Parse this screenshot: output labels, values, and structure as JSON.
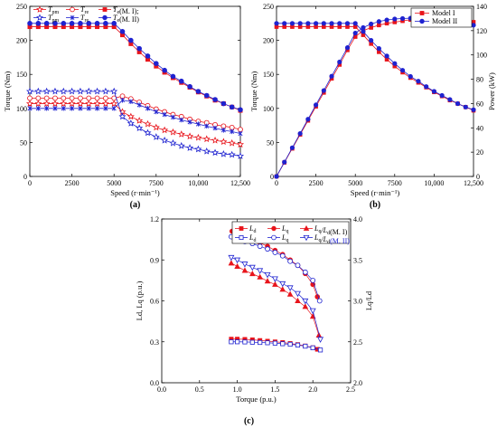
{
  "figure_labels": [
    "(a)",
    "(b)",
    "(c)"
  ],
  "colors": {
    "red": "#e8141b",
    "blue": "#1e22d0",
    "dark": "#222222"
  },
  "chart_data": [
    {
      "id": "a",
      "type": "line",
      "xlabel": "Speed (r·min⁻¹)",
      "ylabel": "Torque (Nm)",
      "xlim": [
        0,
        12500
      ],
      "ylim": [
        0,
        250
      ],
      "xticks": [
        0,
        2500,
        5000,
        7500,
        10000,
        12500
      ],
      "xtick_labels": [
        "0",
        "2500",
        "5000",
        "7500",
        "10,000",
        "12,500"
      ],
      "yticks": [
        0,
        50,
        100,
        150,
        200,
        250
      ],
      "ytick_labels": [
        "0",
        "50",
        "100",
        "150",
        "200",
        "250"
      ],
      "grid": false,
      "legend_position": "top",
      "x": [
        0,
        500,
        1000,
        1500,
        2000,
        2500,
        3000,
        3500,
        4000,
        4500,
        5000,
        5500,
        6000,
        6500,
        7000,
        7500,
        8000,
        8500,
        9000,
        9500,
        10000,
        10500,
        11000,
        11500,
        12000,
        12500
      ],
      "series": [
        {
          "name": "Tpm (M. I)",
          "legend_main": "T",
          "legend_sub": "pm",
          "legend_suffix": "",
          "color": "red",
          "marker": "star",
          "values": [
            107,
            107,
            107,
            107,
            107,
            107,
            107,
            107,
            107,
            107,
            107,
            95,
            88,
            82,
            77,
            72,
            68,
            65,
            62,
            59,
            57,
            55,
            53,
            51,
            49,
            47
          ]
        },
        {
          "name": "Tre (M. I)",
          "legend_main": "T",
          "legend_sub": "re",
          "legend_suffix": "",
          "color": "red",
          "marker": "circle-open",
          "values": [
            115,
            115,
            115,
            115,
            115,
            115,
            115,
            115,
            115,
            115,
            115,
            118,
            114,
            109,
            104,
            99,
            95,
            91,
            88,
            84,
            81,
            79,
            76,
            74,
            72,
            69
          ]
        },
        {
          "name": "Te(M. I)",
          "legend_main": "T",
          "legend_sub": "e",
          "legend_suffix": "(M. I);",
          "color": "red",
          "marker": "square",
          "values": [
            220,
            220,
            220,
            220,
            220,
            220,
            220,
            220,
            220,
            220,
            220,
            208,
            195,
            183,
            172,
            162,
            153,
            145,
            138,
            131,
            124,
            118,
            112,
            107,
            102,
            97
          ]
        },
        {
          "name": "Tpm (M. II)",
          "legend_main": "T",
          "legend_sub": "pm",
          "legend_suffix": "",
          "color": "blue",
          "marker": "star",
          "values": [
            125,
            125,
            125,
            125,
            125,
            125,
            125,
            125,
            125,
            125,
            125,
            88,
            78,
            71,
            64,
            58,
            53,
            49,
            45,
            42,
            40,
            37,
            35,
            33,
            32,
            30
          ]
        },
        {
          "name": "Tre (M. II)",
          "legend_main": "T",
          "legend_sub": "re",
          "legend_suffix": "",
          "color": "blue",
          "marker": "x",
          "values": [
            100,
            100,
            100,
            100,
            100,
            100,
            100,
            100,
            100,
            100,
            100,
            112,
            110,
            105,
            100,
            95,
            91,
            87,
            83,
            80,
            77,
            74,
            71,
            68,
            66,
            63
          ]
        },
        {
          "name": "Te(M. II)",
          "legend_main": "T",
          "legend_sub": "e",
          "legend_suffix": "(M. II)",
          "color": "blue",
          "marker": "circle",
          "values": [
            225,
            225,
            225,
            225,
            225,
            225,
            225,
            225,
            225,
            225,
            225,
            213,
            200,
            188,
            177,
            166,
            156,
            147,
            140,
            132,
            125,
            119,
            113,
            107,
            102,
            98
          ]
        }
      ]
    },
    {
      "id": "b",
      "type": "line",
      "xlabel": "Speed (r·min⁻¹)",
      "ylabel": "Torque (Nm)",
      "ylabel_right": "Power (kW)",
      "xlim": [
        0,
        12500
      ],
      "ylim": [
        0,
        250
      ],
      "ylim_right": [
        0,
        140
      ],
      "xticks": [
        0,
        2500,
        5000,
        7500,
        10000,
        12500
      ],
      "xtick_labels": [
        "0",
        "2500",
        "5000",
        "7500",
        "10,000",
        "12,500"
      ],
      "yticks": [
        0,
        50,
        100,
        150,
        200,
        250
      ],
      "ytick_labels": [
        "0",
        "50",
        "100",
        "150",
        "200",
        "250"
      ],
      "yticks_right": [
        0,
        20,
        40,
        60,
        80,
        100,
        120,
        140
      ],
      "ytick_labels_right": [
        "0",
        "20",
        "40",
        "60",
        "80",
        "100",
        "120",
        "140"
      ],
      "grid": false,
      "legend_position": "top-right",
      "x": [
        0,
        500,
        1000,
        1500,
        2000,
        2500,
        3000,
        3500,
        4000,
        4500,
        5000,
        5500,
        6000,
        6500,
        7000,
        7500,
        8000,
        8500,
        9000,
        9500,
        10000,
        10500,
        11000,
        11500,
        12000,
        12500
      ],
      "series": [
        {
          "name": "Model I",
          "axis": "left",
          "color": "red",
          "marker": "square",
          "values": [
            220,
            220,
            220,
            220,
            220,
            220,
            220,
            220,
            220,
            220,
            220,
            208,
            195,
            183,
            172,
            162,
            153,
            145,
            138,
            131,
            124,
            118,
            112,
            107,
            102,
            97
          ]
        },
        {
          "name": "Model I",
          "axis": "right",
          "color": "red",
          "marker": "square",
          "values": [
            0,
            11.5,
            23,
            34.5,
            46,
            57.6,
            69,
            80.6,
            92,
            104,
            115,
            120,
            122.5,
            124.5,
            126,
            127,
            128,
            129,
            130,
            130,
            130,
            129.5,
            129,
            128.5,
            128,
            127
          ]
        },
        {
          "name": "Model II",
          "axis": "left",
          "color": "blue",
          "marker": "circle",
          "values": [
            225,
            225,
            225,
            225,
            225,
            225,
            225,
            225,
            225,
            225,
            225,
            213,
            200,
            188,
            177,
            166,
            156,
            147,
            140,
            132,
            125,
            119,
            113,
            107,
            102,
            98
          ]
        },
        {
          "name": "Model II",
          "axis": "right",
          "color": "blue",
          "marker": "circle",
          "values": [
            0,
            11.8,
            23.6,
            35.3,
            47.1,
            58.9,
            70.7,
            82.5,
            94.2,
            106,
            118,
            122.5,
            125.5,
            127.5,
            128.8,
            129.6,
            130,
            130.2,
            130,
            129.5,
            129,
            128.5,
            127.5,
            126.5,
            125.5,
            124.5
          ]
        }
      ]
    },
    {
      "id": "c",
      "type": "line",
      "xlabel": "Torque (p.u.)",
      "ylabel": "Ld, Lq (p.u.)",
      "ylabel_right": "Lq/Ld",
      "xlim": [
        0.0,
        2.5
      ],
      "ylim": [
        0.0,
        1.2
      ],
      "ylim_right": [
        2.0,
        4.0
      ],
      "xticks": [
        0.0,
        0.5,
        1.0,
        1.5,
        2.0,
        2.5
      ],
      "xtick_labels": [
        "0.0",
        "0.5",
        "1.0",
        "1.5",
        "2.0",
        "2.5"
      ],
      "yticks": [
        0.0,
        0.3,
        0.6,
        0.9,
        1.2
      ],
      "ytick_labels": [
        "0.0",
        "0.3",
        "0.6",
        "0.9",
        "1.2"
      ],
      "yticks_right": [
        2.0,
        2.5,
        3.0,
        3.5,
        4.0
      ],
      "ytick_labels_right": [
        "2.0",
        "2.5",
        "3.0",
        "3.5",
        "4.0"
      ],
      "grid": false,
      "legend_position": "top-right",
      "series": [
        {
          "name": "Ld (M. I)",
          "legend_main": "L",
          "legend_sub": "d",
          "legend_mid": "",
          "legend_sub2": "",
          "legend_suffix": "",
          "axis": "left",
          "color": "red",
          "marker": "square",
          "x": [
            0.92,
            1.0,
            1.1,
            1.2,
            1.3,
            1.4,
            1.5,
            1.6,
            1.7,
            1.8,
            1.9,
            2.0,
            2.06
          ],
          "y": [
            0.32,
            0.32,
            0.318,
            0.315,
            0.31,
            0.305,
            0.3,
            0.295,
            0.288,
            0.28,
            0.27,
            0.257,
            0.245
          ]
        },
        {
          "name": "Lq (M. I)",
          "legend_main": "L",
          "legend_sub": "q",
          "legend_mid": "",
          "legend_sub2": "",
          "legend_suffix": "",
          "axis": "left",
          "color": "red",
          "marker": "circle",
          "x": [
            0.93,
            1.0,
            1.1,
            1.2,
            1.3,
            1.4,
            1.5,
            1.6,
            1.7,
            1.8,
            1.9,
            2.0,
            2.06
          ],
          "y": [
            1.11,
            1.09,
            1.07,
            1.05,
            1.025,
            1.0,
            0.97,
            0.94,
            0.9,
            0.86,
            0.8,
            0.72,
            0.63
          ]
        },
        {
          "name": "Lq/Ld (M. I)",
          "legend_main": "L",
          "legend_sub": "q",
          "legend_mid": "/L",
          "legend_sub2": "d",
          "legend_suffix": "(M. I)",
          "axis": "right",
          "color": "red",
          "marker": "triangle",
          "x": [
            0.92,
            1.0,
            1.1,
            1.2,
            1.3,
            1.4,
            1.5,
            1.6,
            1.7,
            1.8,
            1.9,
            2.0,
            2.08
          ],
          "y": [
            3.46,
            3.42,
            3.37,
            3.33,
            3.29,
            3.24,
            3.2,
            3.14,
            3.08,
            3.0,
            2.93,
            2.81,
            2.58
          ]
        },
        {
          "name": "Ld (M. II)",
          "legend_main": "L",
          "legend_sub": "d",
          "legend_mid": "",
          "legend_sub2": "",
          "legend_suffix": "",
          "axis": "left",
          "color": "blue",
          "marker": "square-open",
          "x": [
            0.92,
            1.0,
            1.1,
            1.2,
            1.3,
            1.4,
            1.5,
            1.6,
            1.7,
            1.8,
            1.9,
            2.0,
            2.1
          ],
          "y": [
            0.3,
            0.3,
            0.299,
            0.297,
            0.295,
            0.293,
            0.29,
            0.286,
            0.282,
            0.276,
            0.268,
            0.256,
            0.24
          ]
        },
        {
          "name": "Lq (M. II)",
          "legend_main": "L",
          "legend_sub": "q",
          "legend_mid": "",
          "legend_sub2": "",
          "legend_suffix": "",
          "axis": "left",
          "color": "blue",
          "marker": "circle-open",
          "x": [
            0.92,
            1.0,
            1.1,
            1.2,
            1.3,
            1.4,
            1.5,
            1.6,
            1.7,
            1.8,
            1.9,
            2.0,
            2.09
          ],
          "y": [
            1.07,
            1.05,
            1.035,
            1.02,
            1.0,
            0.98,
            0.955,
            0.93,
            0.89,
            0.86,
            0.81,
            0.75,
            0.6
          ]
        },
        {
          "name": "Lq/Ld (M. II)",
          "legend_main": "L",
          "legend_sub": "q",
          "legend_mid": "/L",
          "legend_sub2": "d",
          "legend_suffix": "(M. II)",
          "axis": "right",
          "color": "blue",
          "marker": "triangle-down",
          "x": [
            0.92,
            1.0,
            1.1,
            1.2,
            1.3,
            1.4,
            1.5,
            1.6,
            1.7,
            1.8,
            1.9,
            2.0,
            2.1
          ],
          "y": [
            3.53,
            3.5,
            3.45,
            3.41,
            3.37,
            3.32,
            3.27,
            3.21,
            3.16,
            3.09,
            3.0,
            2.88,
            2.53
          ]
        }
      ]
    }
  ]
}
